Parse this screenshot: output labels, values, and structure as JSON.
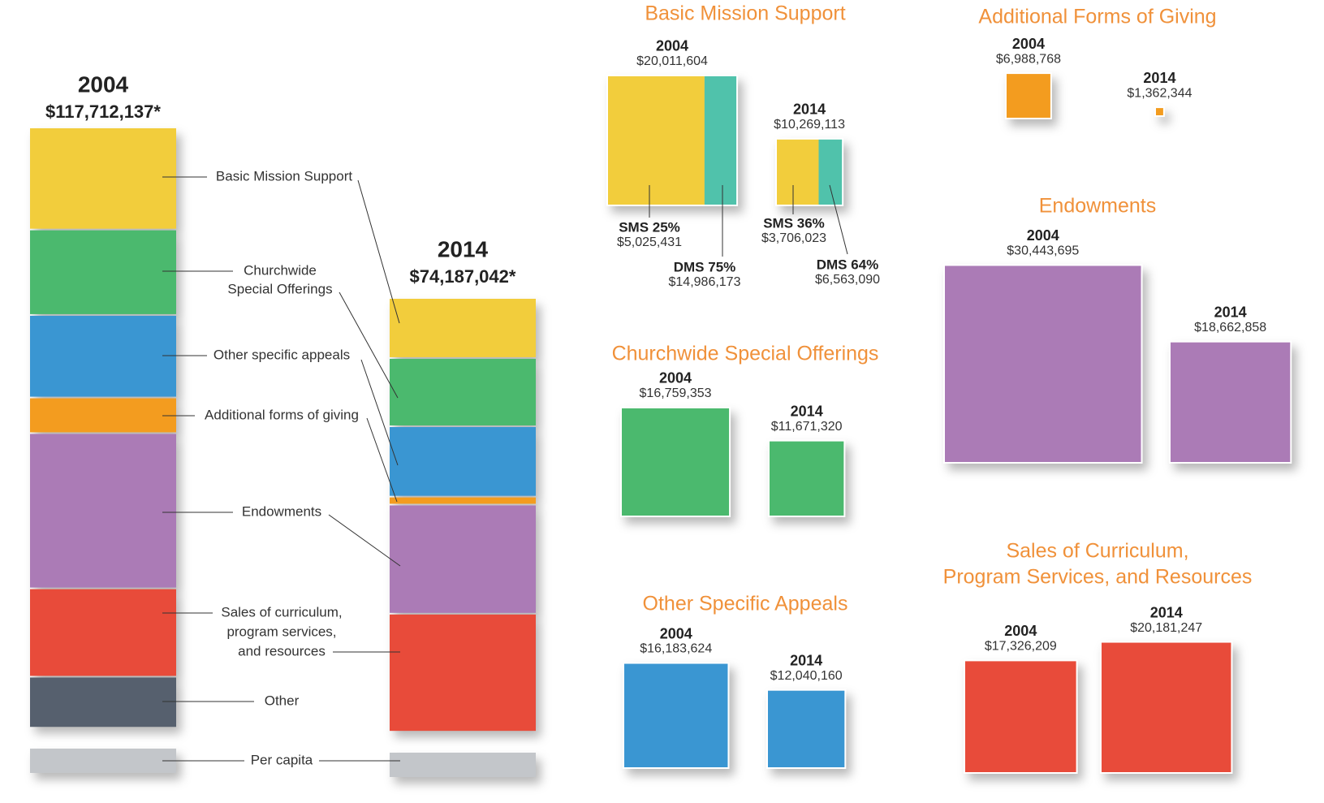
{
  "overview": {
    "columns": [
      {
        "year": "2004",
        "total": {
          "value": 117712137,
          "label": "$117,712,137*"
        }
      },
      {
        "year": "2014",
        "total": {
          "value": 74187042,
          "label": "$74,187,042*"
        }
      }
    ],
    "other": {
      "label": "Other",
      "value_2004": 10000000
    },
    "per_capita": {
      "label": "Per capita"
    }
  },
  "panels": [
    {
      "title": [
        "Basic Mission Support"
      ],
      "legend": [
        "Basic Mission Support"
      ],
      "years": [
        {
          "year": "2004",
          "amount": {
            "value": 20011604,
            "label": "$20,011,604"
          },
          "split": [
            {
              "name": "SMS 25%",
              "amount": {
                "value": 5025431,
                "label": "$5,025,431"
              }
            },
            {
              "name": "DMS 75%",
              "amount": {
                "value": 14986173,
                "label": "$14,986,173"
              }
            }
          ]
        },
        {
          "year": "2014",
          "amount": {
            "value": 10269113,
            "label": "$10,269,113"
          },
          "split": [
            {
              "name": "SMS 36%",
              "amount": {
                "value": 3706023,
                "label": "$3,706,023"
              }
            },
            {
              "name": "DMS 64%",
              "amount": {
                "value": 6563090,
                "label": "$6,563,090"
              }
            }
          ]
        }
      ]
    },
    {
      "title": [
        "Churchwide Special Offerings"
      ],
      "legend": [
        "Churchwide",
        "Special Offerings"
      ],
      "years": [
        {
          "year": "2004",
          "amount": {
            "value": 16759353,
            "label": "$16,759,353"
          }
        },
        {
          "year": "2014",
          "amount": {
            "value": 11671320,
            "label": "$11,671,320"
          }
        }
      ]
    },
    {
      "title": [
        "Other Specific Appeals"
      ],
      "legend": [
        "Other specific appeals"
      ],
      "years": [
        {
          "year": "2004",
          "amount": {
            "value": 16183624,
            "label": "$16,183,624"
          }
        },
        {
          "year": "2014",
          "amount": {
            "value": 12040160,
            "label": "$12,040,160"
          }
        }
      ]
    },
    {
      "title": [
        "Additional Forms of Giving"
      ],
      "legend": [
        "Additional forms of giving"
      ],
      "years": [
        {
          "year": "2004",
          "amount": {
            "value": 6988768,
            "label": "$6,988,768"
          }
        },
        {
          "year": "2014",
          "amount": {
            "value": 1362344,
            "label": "$1,362,344"
          }
        }
      ]
    },
    {
      "title": [
        "Endowments"
      ],
      "legend": [
        "Endowments"
      ],
      "years": [
        {
          "year": "2004",
          "amount": {
            "value": 30443695,
            "label": "$30,443,695"
          }
        },
        {
          "year": "2014",
          "amount": {
            "value": 18662858,
            "label": "$18,662,858"
          }
        }
      ]
    },
    {
      "title": [
        "Sales of Curriculum,",
        "Program Services, and Resources"
      ],
      "legend": [
        "Sales of curriculum,",
        "program services,",
        "and resources"
      ],
      "years": [
        {
          "year": "2004",
          "amount": {
            "value": 17326209,
            "label": "$17,326,209"
          }
        },
        {
          "year": "2014",
          "amount": {
            "value": 20181247,
            "label": "$20,181,247"
          }
        }
      ]
    }
  ]
}
